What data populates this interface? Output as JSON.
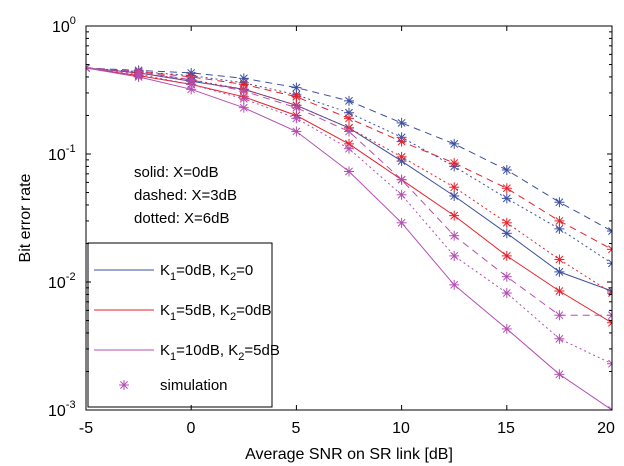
{
  "chart_data": {
    "type": "line",
    "xlabel": "Average SNR on SR link [dB]",
    "ylabel": "Bit error rate",
    "xlim": [
      -5,
      20
    ],
    "ylim": [
      0.001,
      1
    ],
    "yscale": "log",
    "grid": false,
    "xticks": [
      "-5",
      "0",
      "5",
      "10",
      "15",
      "20"
    ],
    "yticks": [
      {
        "base": "10",
        "exp": "0"
      },
      {
        "base": "10",
        "exp": "-1"
      },
      {
        "base": "10",
        "exp": "-2"
      },
      {
        "base": "10",
        "exp": "-3"
      }
    ],
    "annotations": [
      "solid: X=0dB",
      "dashed: X=3dB",
      "dotted: X=6dB"
    ],
    "legend": {
      "placement": "bottom-left",
      "entries": [
        {
          "pre": "K",
          "sub1": "1",
          "mid": "=0dB, K",
          "sub2": "2",
          "post": "=0",
          "color": "#3d4fa0",
          "marker": "line"
        },
        {
          "pre": "K",
          "sub1": "1",
          "mid": "=5dB, K",
          "sub2": "2",
          "post": "=0dB",
          "color": "#e8202a",
          "marker": "line"
        },
        {
          "pre": "K",
          "sub1": "1",
          "mid": "=10dB, K",
          "sub2": "2",
          "post": "=5dB",
          "color": "#b34fb3",
          "marker": "line"
        },
        {
          "pre": "simulation",
          "sub1": "",
          "mid": "",
          "sub2": "",
          "post": "",
          "color": "#b34fb3",
          "marker": "star"
        }
      ]
    },
    "x": [
      -5,
      -2.5,
      0,
      2.5,
      5,
      7.5,
      10,
      12.5,
      15,
      17.5,
      20
    ],
    "series": [
      {
        "name": "K1=0dB, K2=0, X=0dB",
        "color": "#3d4fa0",
        "style": "solid",
        "values": [
          0.47,
          0.43,
          0.37,
          0.32,
          0.24,
          0.16,
          0.088,
          0.047,
          0.024,
          0.012,
          0.0085
        ]
      },
      {
        "name": "K1=0dB, K2=0, X=3dB",
        "color": "#3d4fa0",
        "style": "dashed",
        "values": [
          0.47,
          0.45,
          0.43,
          0.39,
          0.33,
          0.26,
          0.175,
          0.12,
          0.075,
          0.042,
          0.025
        ]
      },
      {
        "name": "K1=0dB, K2=0, X=6dB",
        "color": "#3d4fa0",
        "style": "dotted",
        "values": [
          0.47,
          0.44,
          0.41,
          0.36,
          0.29,
          0.21,
          0.135,
          0.08,
          0.045,
          0.026,
          0.014
        ]
      },
      {
        "name": "K1=5dB, K2=0dB, X=0dB",
        "color": "#e8202a",
        "style": "solid",
        "values": [
          0.47,
          0.41,
          0.35,
          0.28,
          0.2,
          0.12,
          0.063,
          0.033,
          0.016,
          0.0085,
          0.0048
        ]
      },
      {
        "name": "K1=5dB, K2=0dB, X=3dB",
        "color": "#e8202a",
        "style": "dashed",
        "values": [
          0.47,
          0.44,
          0.4,
          0.35,
          0.28,
          0.19,
          0.125,
          0.085,
          0.054,
          0.03,
          0.018
        ]
      },
      {
        "name": "K1=5dB, K2=0dB, X=6dB",
        "color": "#e8202a",
        "style": "dotted",
        "values": [
          0.47,
          0.43,
          0.38,
          0.32,
          0.24,
          0.16,
          0.095,
          0.055,
          0.029,
          0.015,
          0.0082
        ]
      },
      {
        "name": "K1=10dB, K2=5dB, X=0dB",
        "color": "#b34fb3",
        "style": "solid",
        "values": [
          0.47,
          0.4,
          0.32,
          0.23,
          0.15,
          0.073,
          0.029,
          0.0095,
          0.0043,
          0.0019,
          0.001
        ]
      },
      {
        "name": "K1=10dB, K2=5dB, X=3dB",
        "color": "#b34fb3",
        "style": "dashed",
        "values": [
          0.47,
          0.44,
          0.38,
          0.31,
          0.23,
          0.15,
          0.063,
          0.023,
          0.011,
          0.0055,
          0.0055
        ]
      },
      {
        "name": "K1=10dB, K2=5dB, X=6dB",
        "color": "#b34fb3",
        "style": "dotted",
        "values": [
          0.47,
          0.42,
          0.35,
          0.27,
          0.19,
          0.11,
          0.048,
          0.016,
          0.0082,
          0.0036,
          0.0023
        ]
      }
    ]
  }
}
